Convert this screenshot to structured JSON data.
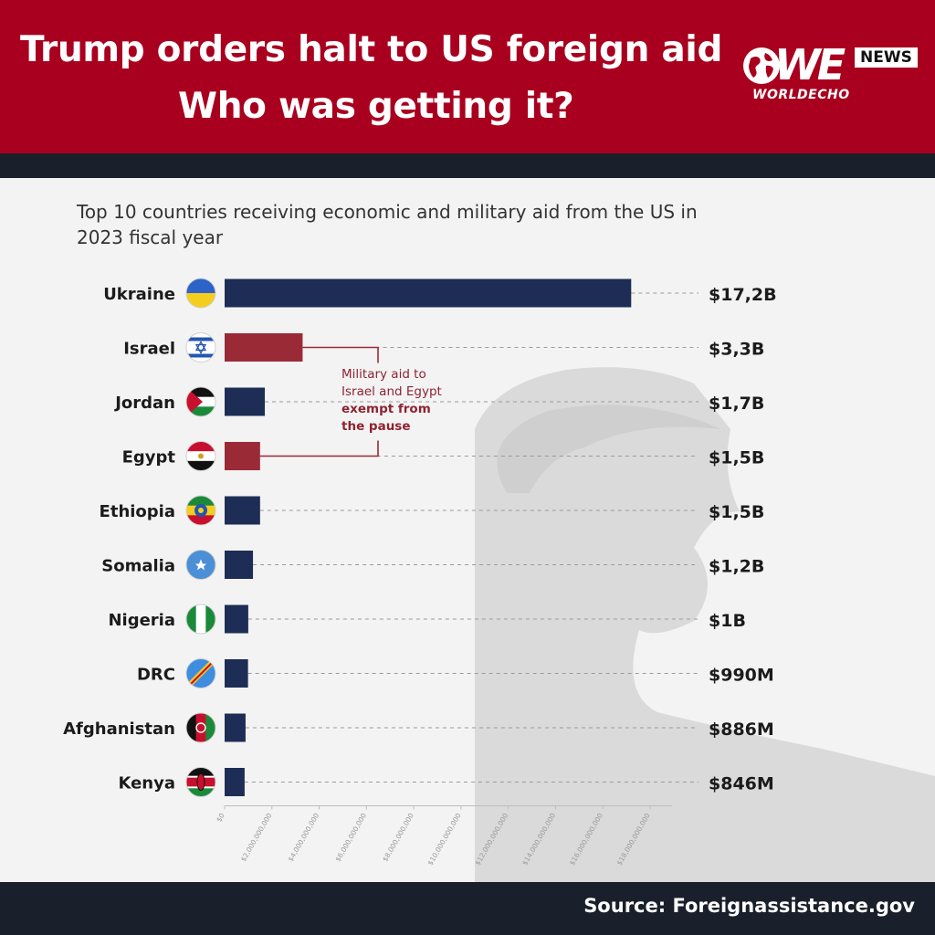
{
  "header": {
    "title_line1": "Trump orders halt to US foreign aid",
    "title_line2": "Who was getting it?",
    "logo_text": "WE",
    "logo_badge": "NEWS",
    "logo_sub": "WORLDECHO"
  },
  "footer": {
    "source": "Source: Foreignassistance.gov"
  },
  "colors": {
    "header_bg": "#a8001e",
    "navy": "#1d2d55",
    "maroon": "#9b2a37",
    "dark_band": "#1a202b"
  },
  "chart_data": {
    "type": "bar",
    "orientation": "horizontal",
    "title": "Top 10 countries receiving economic and military aid from the US in 2023 fiscal year",
    "categories": [
      "Ukraine",
      "Israel",
      "Jordan",
      "Egypt",
      "Ethiopia",
      "Somalia",
      "Nigeria",
      "DRC",
      "Afghanistan",
      "Kenya"
    ],
    "values": [
      17200000000,
      3300000000,
      1700000000,
      1500000000,
      1500000000,
      1200000000,
      1000000000,
      990000000,
      886000000,
      846000000
    ],
    "value_labels": [
      "$17,2B",
      "$3,3B",
      "$1,7B",
      "$1,5B",
      "$1,5B",
      "$1,2B",
      "$1B",
      "$990M",
      "$886M",
      "$846M"
    ],
    "highlighted": [
      "Israel",
      "Egypt"
    ],
    "flag_icons": [
      "ukraine-flag-icon",
      "israel-flag-icon",
      "jordan-flag-icon",
      "egypt-flag-icon",
      "ethiopia-flag-icon",
      "somalia-flag-icon",
      "nigeria-flag-icon",
      "drc-flag-icon",
      "afghanistan-flag-icon",
      "kenya-flag-icon"
    ],
    "x_ticks": [
      0,
      2000000000,
      4000000000,
      6000000000,
      8000000000,
      10000000000,
      12000000000,
      14000000000,
      16000000000,
      18000000000
    ],
    "x_tick_labels": [
      "$0",
      "$2,000,000,000",
      "$4,000,000,000",
      "$6,000,000,000",
      "$8,000,000,000",
      "$10,000,000,000",
      "$12,000,000,000",
      "$14,000,000,000",
      "$16,000,000,000",
      "$18,000,000,000"
    ],
    "xlim": [
      0,
      18000000000
    ],
    "annotation": {
      "line1": "Military aid to",
      "line2": "Israel and Egypt",
      "line3": "exempt from",
      "line4": "the pause"
    },
    "grid": false,
    "legend": "none"
  }
}
